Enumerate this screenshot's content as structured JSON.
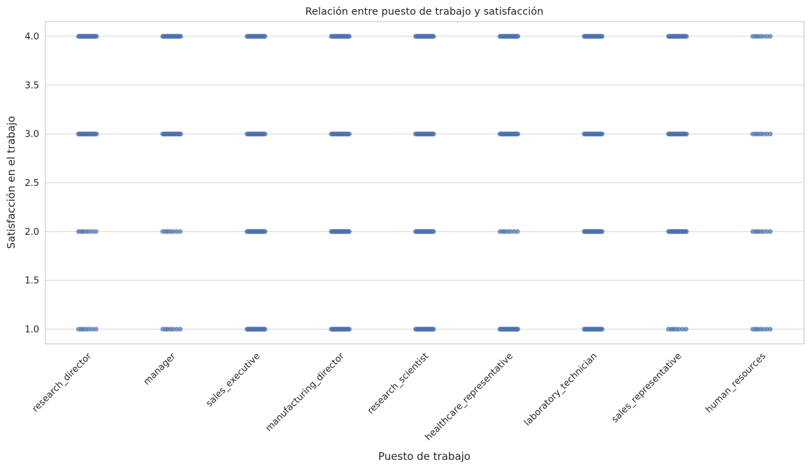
{
  "chart_data": {
    "type": "scatter",
    "title": "Relación entre puesto de trabajo y satisfacción",
    "xlabel": "Puesto de trabajo",
    "ylabel": "Satisfacción en el trabajo",
    "categories": [
      "research_director",
      "manager",
      "sales_executive",
      "manufacturing_director",
      "research_scientist",
      "healthcare_representative",
      "laboratory_technician",
      "sales_representative",
      "human_resources"
    ],
    "y_ticks": [
      "1.0",
      "1.5",
      "2.0",
      "2.5",
      "3.0",
      "3.5",
      "4.0"
    ],
    "ylim": [
      0.85,
      4.15
    ],
    "grid": "horizontal",
    "point_color": "#4c72b0",
    "points": [
      {
        "category": "research_director",
        "y": [
          1,
          2,
          3,
          4
        ],
        "style": [
          "sparse",
          "sparse",
          "dense",
          "dense"
        ]
      },
      {
        "category": "manager",
        "y": [
          1,
          2,
          3,
          4
        ],
        "style": [
          "sparse",
          "sparse",
          "dense",
          "dense"
        ]
      },
      {
        "category": "sales_executive",
        "y": [
          1,
          2,
          3,
          4
        ],
        "style": [
          "dense",
          "dense",
          "dense",
          "dense"
        ]
      },
      {
        "category": "manufacturing_director",
        "y": [
          1,
          2,
          3,
          4
        ],
        "style": [
          "dense",
          "dense",
          "dense",
          "dense"
        ]
      },
      {
        "category": "research_scientist",
        "y": [
          1,
          2,
          3,
          4
        ],
        "style": [
          "dense",
          "dense",
          "dense",
          "dense"
        ]
      },
      {
        "category": "healthcare_representative",
        "y": [
          1,
          2,
          3,
          4
        ],
        "style": [
          "dense",
          "sparse",
          "dense",
          "dense"
        ]
      },
      {
        "category": "laboratory_technician",
        "y": [
          1,
          2,
          3,
          4
        ],
        "style": [
          "dense",
          "dense",
          "dense",
          "dense"
        ]
      },
      {
        "category": "sales_representative",
        "y": [
          1,
          2,
          3,
          4
        ],
        "style": [
          "sparse",
          "dense",
          "dense",
          "dense"
        ]
      },
      {
        "category": "human_resources",
        "y": [
          1,
          2,
          3,
          4
        ],
        "style": [
          "sparse",
          "sparse",
          "sparse",
          "sparse"
        ]
      }
    ]
  }
}
